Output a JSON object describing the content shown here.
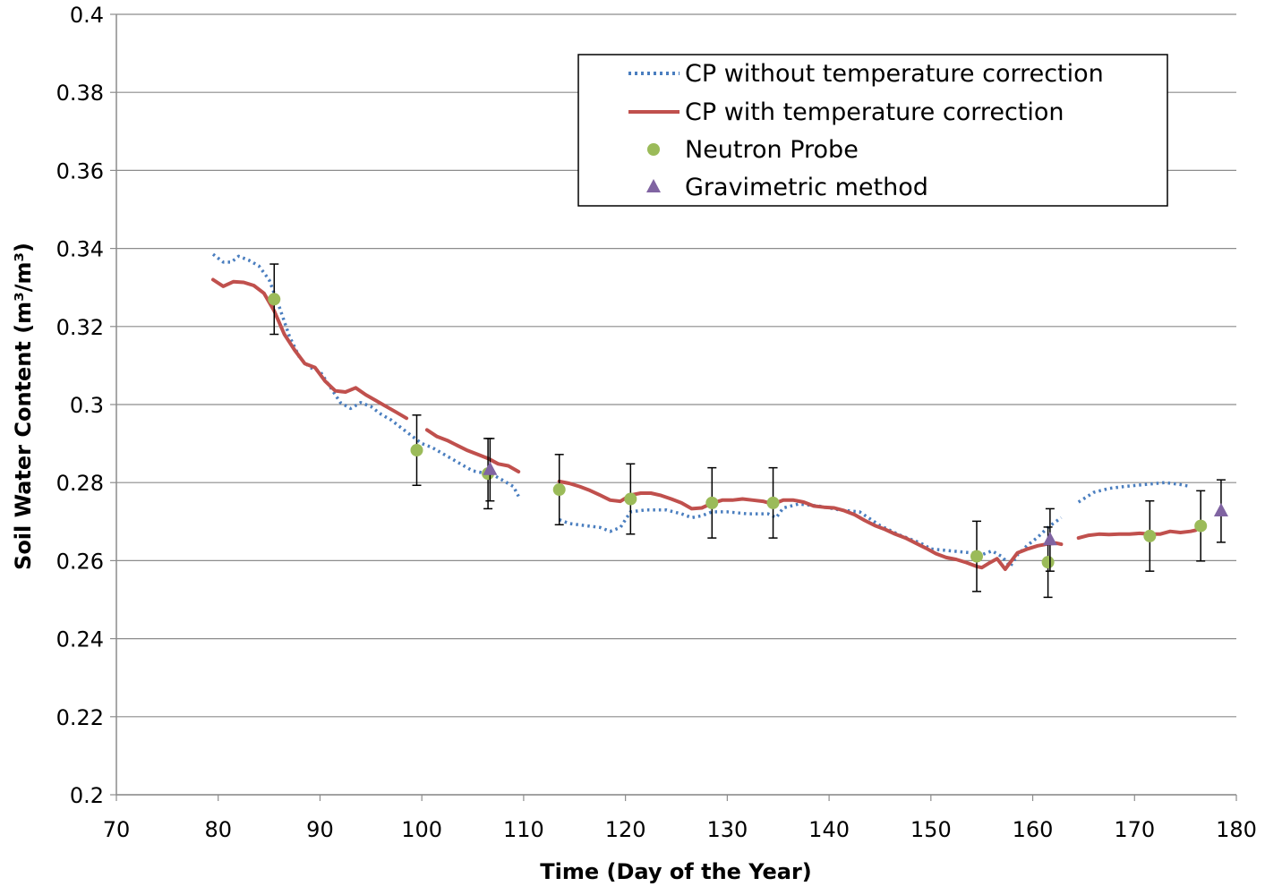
{
  "chart_data": {
    "type": "line",
    "title": "",
    "xlabel": "Time (Day of the Year)",
    "ylabel": "Soil Water Content (m³/m³)",
    "xlim": [
      70,
      180
    ],
    "ylim": [
      0.2,
      0.4
    ],
    "xticks": [
      70,
      80,
      90,
      100,
      110,
      120,
      130,
      140,
      150,
      160,
      170,
      180
    ],
    "yticks": [
      0.2,
      0.22,
      0.24,
      0.26,
      0.28,
      0.3,
      0.32,
      0.34,
      0.36,
      0.38,
      0.4
    ],
    "ytick_labels": [
      "0.2",
      "0.22",
      "0.24",
      "0.26",
      "0.28",
      "0.3",
      "0.32",
      "0.34",
      "0.36",
      "0.38",
      "0.4"
    ],
    "grid": "horizontal",
    "legend_position": "top-right",
    "legend": [
      {
        "label": "CP without temperature correction",
        "style": "dotted-line",
        "color": "#4a7ebf"
      },
      {
        "label": "CP with temperature correction",
        "style": "solid-line",
        "color": "#c0504d"
      },
      {
        "label": "Neutron Probe",
        "style": "circle-marker",
        "color": "#9bbb59"
      },
      {
        "label": "Gravimetric method",
        "style": "triangle-marker",
        "color": "#8064a2"
      }
    ],
    "series": [
      {
        "name": "CP without temperature correction",
        "color": "#4a7ebf",
        "segments": [
          [
            [
              79.5,
              0.3385
            ],
            [
              80.5,
              0.3365
            ],
            [
              81.3,
              0.3365
            ],
            [
              82,
              0.338
            ],
            [
              83,
              0.337
            ],
            [
              84,
              0.3355
            ],
            [
              85,
              0.332
            ],
            [
              86,
              0.325
            ],
            [
              87,
              0.3175
            ],
            [
              88,
              0.312
            ],
            [
              89,
              0.3095
            ],
            [
              90,
              0.3085
            ],
            [
              91,
              0.3045
            ],
            [
              92,
              0.3005
            ],
            [
              93,
              0.299
            ],
            [
              94,
              0.3005
            ],
            [
              95,
              0.2995
            ],
            [
              96,
              0.2975
            ],
            [
              97,
              0.296
            ],
            [
              98,
              0.294
            ],
            [
              99,
              0.292
            ],
            [
              100,
              0.29
            ],
            [
              101,
              0.289
            ],
            [
              102,
              0.2875
            ],
            [
              103,
              0.286
            ],
            [
              104,
              0.2845
            ],
            [
              105,
              0.283
            ],
            [
              106,
              0.2825
            ],
            [
              107,
              0.282
            ],
            [
              108,
              0.2805
            ],
            [
              109,
              0.279
            ],
            [
              109.5,
              0.2765
            ]
          ],
          [
            [
              113.5,
              0.2705
            ],
            [
              114.5,
              0.2695
            ],
            [
              116,
              0.269
            ],
            [
              117.5,
              0.2685
            ],
            [
              118.5,
              0.2675
            ],
            [
              119.5,
              0.2685
            ],
            [
              120.5,
              0.2725
            ],
            [
              122,
              0.273
            ],
            [
              124,
              0.273
            ],
            [
              125.5,
              0.272
            ],
            [
              126.5,
              0.271
            ],
            [
              127.5,
              0.2715
            ],
            [
              128.5,
              0.2725
            ],
            [
              130,
              0.2725
            ],
            [
              132,
              0.272
            ],
            [
              134,
              0.272
            ],
            [
              134.8,
              0.271
            ],
            [
              135.5,
              0.2735
            ],
            [
              137,
              0.2745
            ],
            [
              139,
              0.274
            ],
            [
              141,
              0.273
            ],
            [
              143,
              0.2725
            ],
            [
              145,
              0.269
            ],
            [
              147,
              0.2665
            ],
            [
              149,
              0.2645
            ],
            [
              150,
              0.263
            ],
            [
              152,
              0.2625
            ],
            [
              154,
              0.262
            ],
            [
              155,
              0.2615
            ],
            [
              156,
              0.2625
            ],
            [
              157,
              0.261
            ],
            [
              157.8,
              0.2585
            ],
            [
              158.5,
              0.2615
            ],
            [
              159.5,
              0.264
            ],
            [
              160.5,
              0.266
            ],
            [
              161.5,
              0.2685
            ],
            [
              162,
              0.2695
            ],
            [
              162.8,
              0.271
            ]
          ],
          [
            [
              164.5,
              0.275
            ],
            [
              166,
              0.2775
            ],
            [
              167.5,
              0.2785
            ],
            [
              169,
              0.279
            ],
            [
              171,
              0.2795
            ],
            [
              173,
              0.28
            ],
            [
              174.5,
              0.2795
            ],
            [
              175.5,
              0.279
            ]
          ]
        ]
      },
      {
        "name": "CP with temperature correction",
        "color": "#c0504d",
        "segments": [
          [
            [
              79.5,
              0.332
            ],
            [
              80.5,
              0.3303
            ],
            [
              81.5,
              0.3315
            ],
            [
              82.5,
              0.3313
            ],
            [
              83.5,
              0.3305
            ],
            [
              84.5,
              0.3285
            ],
            [
              85.5,
              0.324
            ],
            [
              86.5,
              0.318
            ],
            [
              87.5,
              0.314
            ],
            [
              88.5,
              0.3105
            ],
            [
              89.5,
              0.3095
            ],
            [
              90.5,
              0.306
            ],
            [
              91.5,
              0.3035
            ],
            [
              92.5,
              0.3032
            ],
            [
              93.5,
              0.3043
            ],
            [
              94.5,
              0.3025
            ],
            [
              95.5,
              0.301
            ],
            [
              96.5,
              0.2995
            ],
            [
              97.5,
              0.298
            ],
            [
              98.5,
              0.2965
            ]
          ],
          [
            [
              100.5,
              0.2935
            ],
            [
              101.5,
              0.2918
            ],
            [
              102.5,
              0.2908
            ],
            [
              103.5,
              0.2895
            ],
            [
              104.5,
              0.2882
            ],
            [
              105.5,
              0.2872
            ],
            [
              106.5,
              0.2862
            ],
            [
              107.5,
              0.2848
            ],
            [
              108.5,
              0.2843
            ],
            [
              109.5,
              0.2828
            ]
          ],
          [
            [
              113.5,
              0.2803
            ],
            [
              114.5,
              0.2798
            ],
            [
              115.5,
              0.279
            ],
            [
              116.5,
              0.278
            ],
            [
              117.5,
              0.2768
            ],
            [
              118.5,
              0.2755
            ],
            [
              119.5,
              0.2752
            ],
            [
              120.5,
              0.2768
            ],
            [
              121.5,
              0.2773
            ],
            [
              122.5,
              0.2773
            ],
            [
              123.5,
              0.2767
            ],
            [
              124.5,
              0.2758
            ],
            [
              125.5,
              0.2748
            ],
            [
              126.5,
              0.2733
            ],
            [
              127.5,
              0.2735
            ],
            [
              128.5,
              0.2747
            ],
            [
              129.5,
              0.2755
            ],
            [
              130.5,
              0.2755
            ],
            [
              131.5,
              0.2758
            ],
            [
              132.5,
              0.2755
            ],
            [
              133.5,
              0.2752
            ],
            [
              134.5,
              0.2745
            ],
            [
              135.5,
              0.2755
            ],
            [
              136.5,
              0.2755
            ],
            [
              137.5,
              0.275
            ],
            [
              138.5,
              0.274
            ],
            [
              139.5,
              0.2737
            ],
            [
              140.5,
              0.2735
            ],
            [
              141.5,
              0.2728
            ],
            [
              142.5,
              0.2718
            ],
            [
              143.5,
              0.2703
            ],
            [
              144.5,
              0.269
            ],
            [
              145.5,
              0.268
            ],
            [
              146.5,
              0.2668
            ],
            [
              147.5,
              0.2658
            ],
            [
              148.5,
              0.2645
            ],
            [
              149.5,
              0.2632
            ],
            [
              150.5,
              0.2618
            ],
            [
              151.5,
              0.2608
            ],
            [
              152.5,
              0.2603
            ],
            [
              153.5,
              0.2595
            ],
            [
              154.5,
              0.2585
            ],
            [
              155,
              0.2582
            ],
            [
              155.8,
              0.2595
            ],
            [
              156.5,
              0.2605
            ],
            [
              157.3,
              0.2578
            ],
            [
              158.5,
              0.262
            ],
            [
              159.5,
              0.263
            ],
            [
              160.5,
              0.2638
            ],
            [
              161.5,
              0.2643
            ],
            [
              162.3,
              0.2645
            ],
            [
              162.8,
              0.2642
            ]
          ],
          [
            [
              164.5,
              0.2658
            ],
            [
              165.5,
              0.2665
            ],
            [
              166.5,
              0.2668
            ],
            [
              167.5,
              0.2667
            ],
            [
              168.5,
              0.2668
            ],
            [
              169.5,
              0.2668
            ],
            [
              170.5,
              0.267
            ],
            [
              171.5,
              0.2668
            ],
            [
              172.5,
              0.2668
            ],
            [
              173.5,
              0.2675
            ],
            [
              174.5,
              0.2672
            ],
            [
              175.5,
              0.2675
            ],
            [
              176,
              0.2678
            ]
          ]
        ]
      }
    ],
    "neutron_probe": {
      "name": "Neutron Probe",
      "color": "#9bbb59",
      "points": [
        {
          "x": 85.5,
          "y": 0.327,
          "err": 0.009
        },
        {
          "x": 99.5,
          "y": 0.2883,
          "err": 0.009
        },
        {
          "x": 106.5,
          "y": 0.2823,
          "err": 0.009
        },
        {
          "x": 113.5,
          "y": 0.2782,
          "err": 0.009
        },
        {
          "x": 120.5,
          "y": 0.2758,
          "err": 0.009
        },
        {
          "x": 128.5,
          "y": 0.2748,
          "err": 0.009
        },
        {
          "x": 134.5,
          "y": 0.2748,
          "err": 0.009
        },
        {
          "x": 154.5,
          "y": 0.2611,
          "err": 0.009
        },
        {
          "x": 161.5,
          "y": 0.2596,
          "err": 0.009
        },
        {
          "x": 171.5,
          "y": 0.2663,
          "err": 0.009
        },
        {
          "x": 176.5,
          "y": 0.2689,
          "err": 0.009
        }
      ]
    },
    "gravimetric": {
      "name": "Gravimetric method",
      "color": "#8064a2",
      "points": [
        {
          "x": 106.7,
          "y": 0.2833,
          "err": 0.008
        },
        {
          "x": 161.7,
          "y": 0.2653,
          "err": 0.008
        },
        {
          "x": 178.5,
          "y": 0.2727,
          "err": 0.008
        }
      ]
    }
  }
}
